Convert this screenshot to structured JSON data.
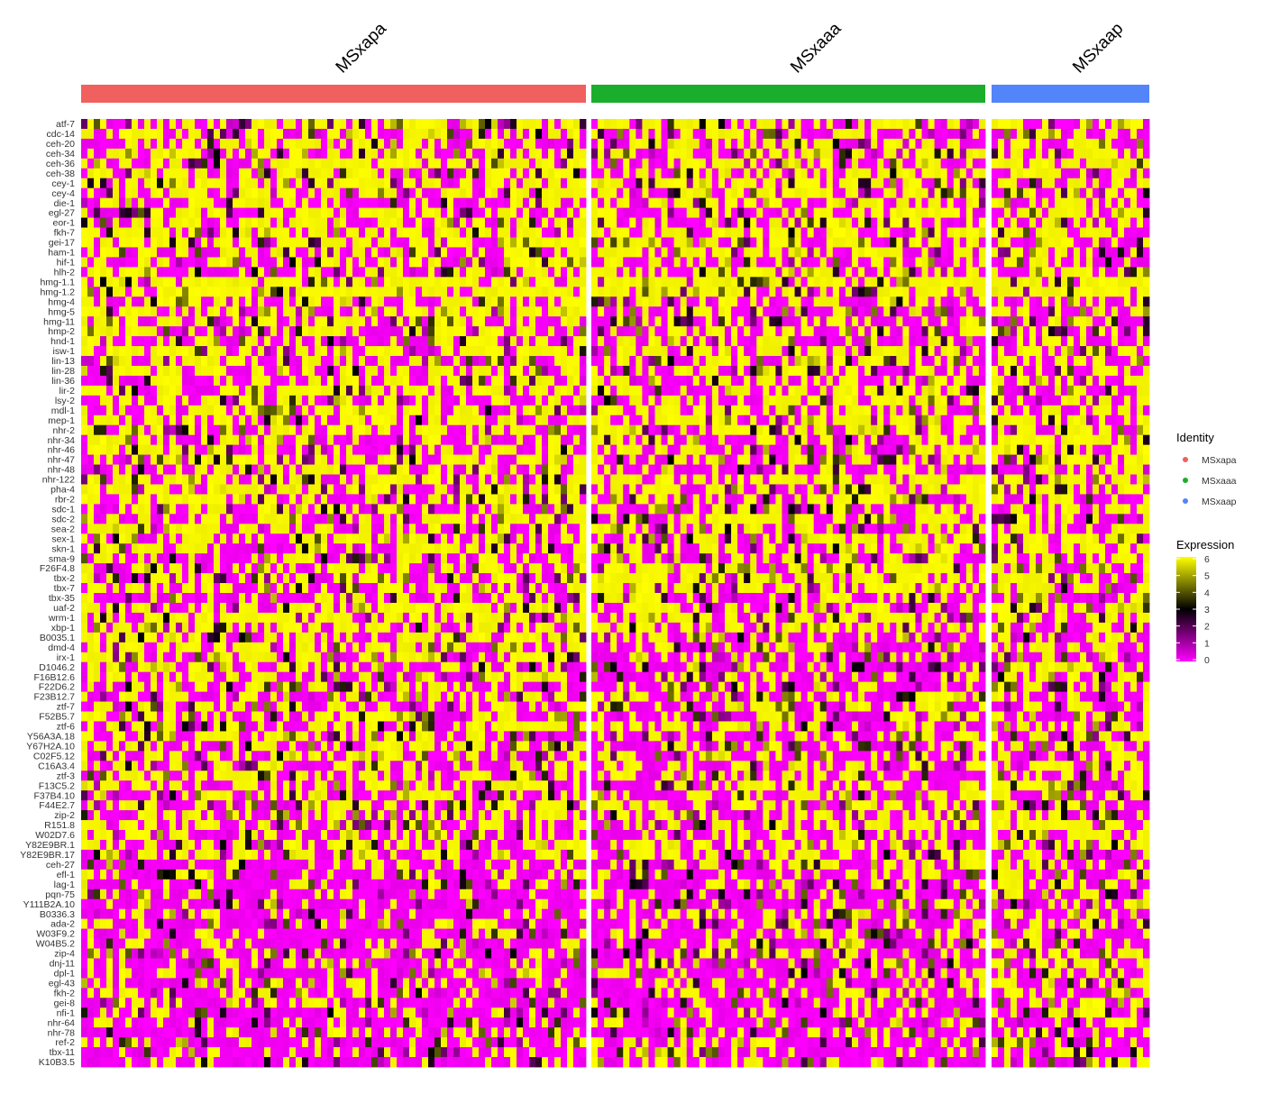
{
  "chart_data": {
    "type": "heatmap",
    "title": "",
    "xlabel": "",
    "ylabel": "",
    "genes": [
      "atf-7",
      "cdc-14",
      "ceh-20",
      "ceh-34",
      "ceh-36",
      "ceh-38",
      "cey-1",
      "cey-4",
      "die-1",
      "egl-27",
      "eor-1",
      "fkh-7",
      "gei-17",
      "ham-1",
      "hif-1",
      "hlh-2",
      "hmg-1.1",
      "hmg-1.2",
      "hmg-4",
      "hmg-5",
      "hmg-11",
      "hmp-2",
      "hnd-1",
      "isw-1",
      "lin-13",
      "lin-28",
      "lin-36",
      "lir-2",
      "lsy-2",
      "mdl-1",
      "mep-1",
      "nhr-2",
      "nhr-34",
      "nhr-46",
      "nhr-47",
      "nhr-48",
      "nhr-122",
      "pha-4",
      "rbr-2",
      "sdc-1",
      "sdc-2",
      "sea-2",
      "sex-1",
      "skn-1",
      "sma-9",
      "F26F4.8",
      "tbx-2",
      "tbx-7",
      "tbx-35",
      "uaf-2",
      "wrm-1",
      "xbp-1",
      "B0035.1",
      "dmd-4",
      "irx-1",
      "D1046.2",
      "F16B12.6",
      "F22D6.2",
      "F23B12.7",
      "ztf-7",
      "F52B5.7",
      "ztf-6",
      "Y56A3A.18",
      "Y67H2A.10",
      "C02F5.12",
      "C16A3.4",
      "ztf-3",
      "F13C5.2",
      "F37B4.10",
      "F44E2.7",
      "zip-2",
      "R151.8",
      "W02D7.6",
      "Y82E9BR.1",
      "Y82E9BR.17",
      "ceh-27",
      "efl-1",
      "lag-1",
      "pqn-75",
      "Y111B2A.10",
      "B0336.3",
      "ada-2",
      "W03F9.2",
      "W04B5.2",
      "zip-4",
      "dnj-11",
      "dpl-1",
      "egl-43",
      "fkh-2",
      "gei-8",
      "nfi-1",
      "nhr-64",
      "nhr-78",
      "ref-2",
      "tbx-11",
      "K10B3.5"
    ],
    "groups": [
      {
        "name": "MSxapa",
        "color": "#F0605E",
        "n_cells": 80
      },
      {
        "name": "MSxaaa",
        "color": "#1AAE2C",
        "n_cells": 62
      },
      {
        "name": "MSxaap",
        "color": "#5284FA",
        "n_cells": 25
      }
    ],
    "identity_legend": {
      "title": "Identity",
      "items": [
        "MSxapa",
        "MSxaaa",
        "MSxaap"
      ]
    },
    "color_scale": {
      "title": "Expression",
      "min": 0,
      "max": 6,
      "ticks": [
        6,
        5,
        4,
        3,
        2,
        1,
        0
      ],
      "low": "#FF00FF",
      "mid": "#000000",
      "high": "#FFFF00"
    },
    "gene_mean_expression": {
      "MSxapa": [
        4.0,
        3.5,
        3.5,
        4.0,
        4.5,
        4.0,
        4.5,
        4.5,
        3.5,
        3.5,
        4.0,
        4.0,
        4.5,
        3.0,
        3.5,
        4.0,
        5.5,
        5.5,
        3.5,
        3.5,
        3.5,
        3.5,
        3.0,
        4.0,
        3.5,
        3.5,
        3.5,
        4.0,
        3.5,
        3.5,
        4.0,
        3.5,
        3.0,
        3.0,
        3.0,
        3.0,
        5.0,
        4.5,
        3.5,
        3.0,
        3.0,
        3.5,
        3.5,
        3.5,
        3.0,
        3.5,
        3.5,
        3.0,
        2.5,
        4.0,
        4.5,
        4.5,
        3.5,
        3.5,
        3.5,
        3.0,
        3.0,
        3.0,
        3.0,
        3.0,
        3.0,
        3.0,
        3.0,
        3.0,
        3.0,
        3.0,
        3.0,
        3.0,
        3.0,
        3.0,
        3.0,
        3.0,
        3.0,
        3.5,
        3.5,
        1.5,
        1.5,
        1.5,
        1.5,
        1.5,
        1.5,
        1.5,
        1.5,
        1.5,
        1.5,
        1.5,
        1.5,
        1.5,
        1.5,
        1.5,
        1.5,
        1.5,
        1.5,
        1.5,
        1.5,
        1.5
      ],
      "MSxaaa": [
        3.5,
        3.0,
        3.0,
        4.0,
        2.5,
        3.5,
        4.0,
        4.0,
        3.5,
        3.0,
        3.5,
        4.0,
        4.0,
        3.0,
        3.0,
        3.5,
        5.5,
        5.5,
        3.0,
        2.5,
        3.0,
        3.0,
        3.0,
        4.0,
        3.0,
        3.0,
        3.0,
        3.5,
        3.5,
        3.0,
        4.0,
        3.5,
        3.0,
        3.0,
        3.0,
        2.5,
        4.5,
        4.5,
        3.0,
        3.0,
        3.0,
        3.0,
        3.5,
        3.0,
        3.0,
        4.5,
        4.5,
        4.5,
        2.5,
        3.5,
        3.5,
        4.0,
        2.0,
        2.0,
        2.5,
        2.0,
        2.5,
        2.5,
        2.5,
        3.0,
        2.5,
        3.0,
        3.0,
        3.0,
        3.0,
        3.0,
        3.0,
        3.0,
        3.0,
        3.0,
        2.5,
        3.0,
        2.5,
        3.0,
        3.0,
        2.5,
        2.0,
        2.0,
        2.0,
        2.0,
        2.0,
        2.0,
        2.0,
        2.0,
        2.0,
        2.0,
        2.0,
        2.0,
        2.0,
        1.5,
        1.5,
        1.5,
        1.5,
        1.5,
        1.5,
        1.5
      ],
      "MSxaap": [
        3.5,
        3.0,
        3.0,
        3.5,
        3.5,
        3.0,
        4.0,
        4.0,
        3.5,
        3.0,
        3.5,
        4.0,
        4.0,
        3.0,
        3.0,
        3.5,
        5.5,
        5.5,
        3.0,
        3.0,
        3.0,
        3.0,
        3.0,
        4.0,
        3.0,
        3.0,
        3.0,
        3.5,
        3.5,
        3.0,
        4.0,
        3.5,
        4.0,
        4.0,
        3.5,
        3.0,
        4.5,
        4.5,
        3.0,
        3.0,
        3.0,
        3.5,
        3.5,
        3.0,
        3.0,
        3.5,
        3.5,
        3.5,
        2.5,
        3.5,
        3.5,
        3.5,
        3.0,
        3.0,
        3.0,
        3.0,
        3.0,
        3.0,
        3.0,
        3.0,
        3.0,
        3.0,
        3.0,
        3.0,
        3.0,
        3.0,
        3.0,
        3.0,
        3.0,
        3.0,
        3.0,
        3.0,
        3.0,
        3.0,
        3.0,
        3.0,
        2.5,
        2.5,
        2.5,
        2.5,
        2.5,
        2.5,
        2.5,
        2.5,
        2.5,
        2.5,
        2.5,
        2.5,
        2.5,
        2.5,
        2.5,
        2.5,
        2.5,
        2.5,
        2.5,
        2.5
      ]
    },
    "grid": false,
    "legend_position": "right"
  }
}
